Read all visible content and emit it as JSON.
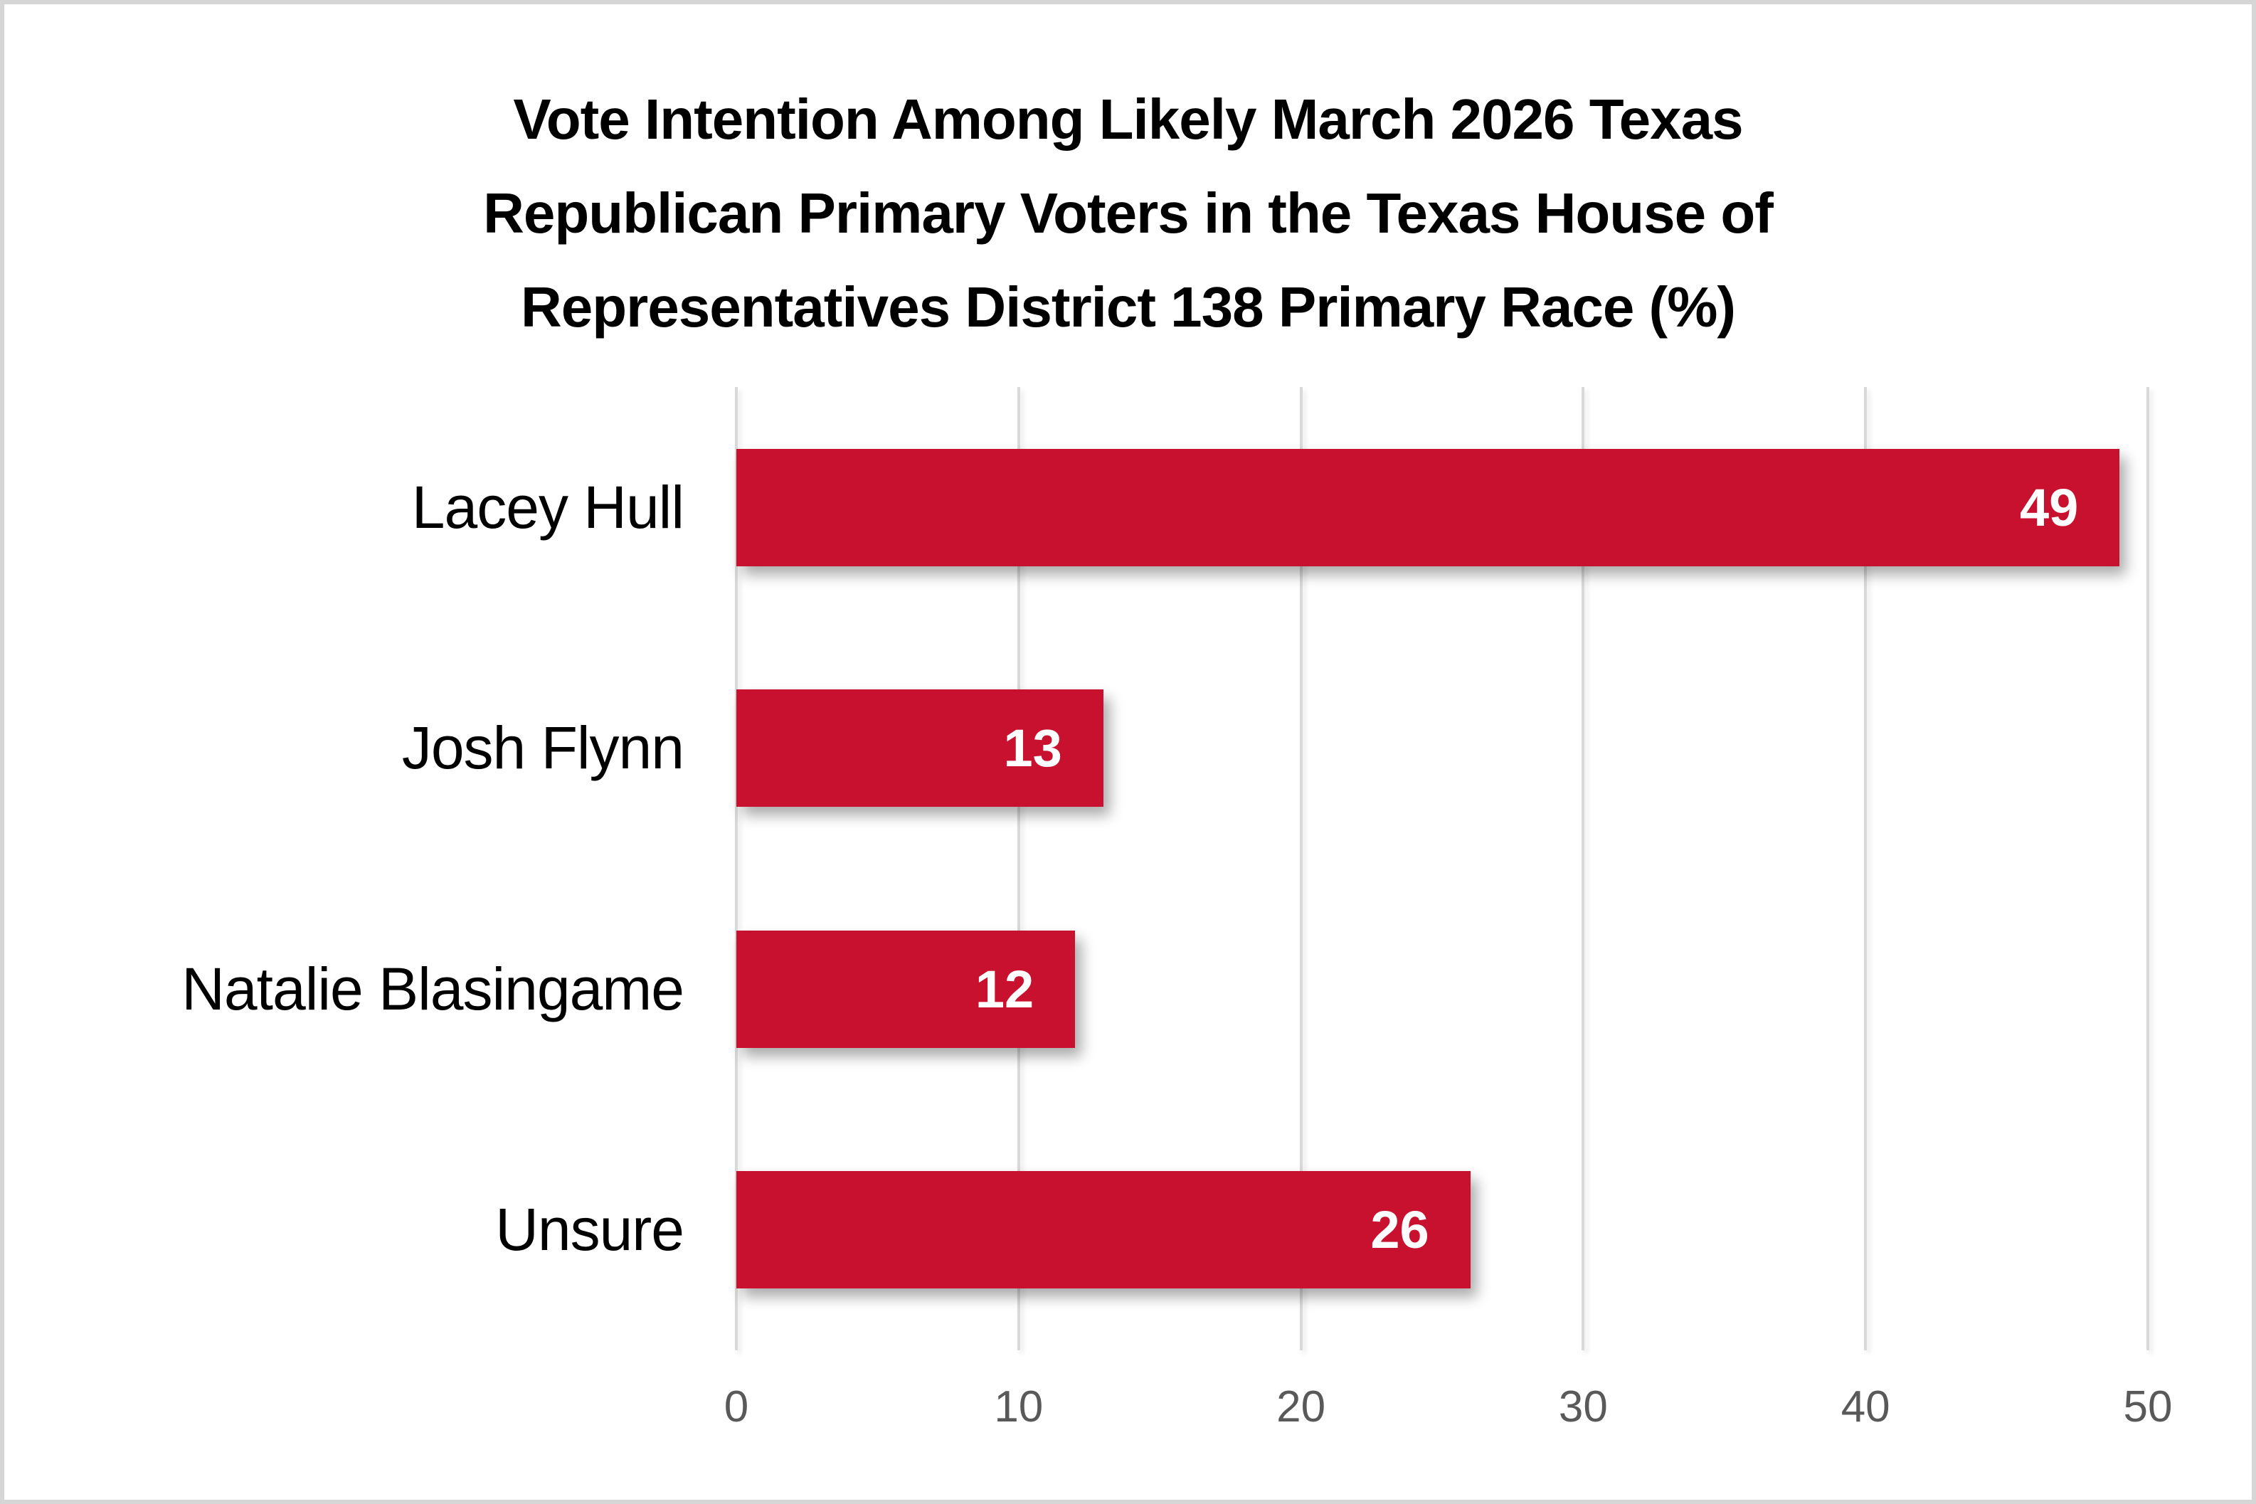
{
  "chart_data": {
    "type": "bar",
    "orientation": "horizontal",
    "title": "Vote Intention Among Likely March 2026 Texas Republican Primary Voters in the Texas House of Representatives District 138 Primary Race (%)",
    "title_lines": [
      "Vote Intention Among Likely March 2026 Texas",
      "Republican Primary Voters in the Texas House of",
      "Representatives District 138 Primary Race (%)"
    ],
    "categories": [
      "Lacey Hull",
      "Josh Flynn",
      "Natalie Blasingame",
      "Unsure"
    ],
    "values": [
      49,
      13,
      12,
      26
    ],
    "data_labels": [
      "49",
      "13",
      "12",
      "26"
    ],
    "xlabel": "",
    "ylabel": "",
    "xlim": [
      0,
      50
    ],
    "xticks": [
      "0",
      "10",
      "20",
      "30",
      "40",
      "50"
    ],
    "grid": true,
    "legend": false,
    "colors": {
      "bar": "#C8112E",
      "gridline": "#D9D9D9",
      "tick_label": "#595959",
      "category_label": "#000000",
      "title": "#000000",
      "value_label": "#FFFFFF",
      "frame_border": "#D6D6D6",
      "background": "#FFFFFF"
    }
  }
}
